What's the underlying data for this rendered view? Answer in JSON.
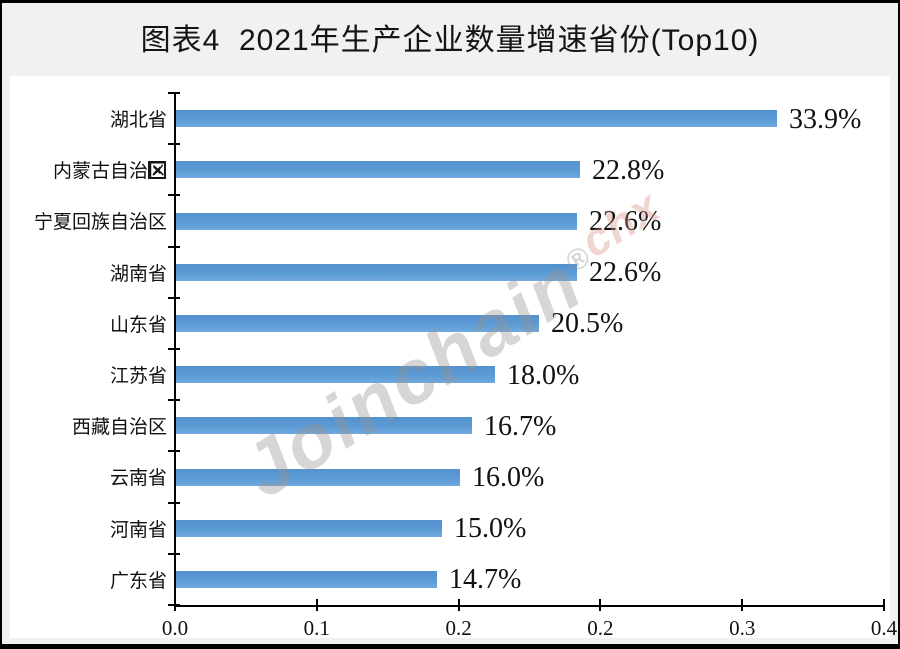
{
  "page": {
    "title": "图表4  2021年生产企业数量增速省份(Top10)"
  },
  "watermark": {
    "main": "Joinchain",
    "reg": "®",
    "tail": "chx",
    "main_color": "#989390",
    "tail_color": "#d6948a"
  },
  "icons": {
    "broken_image_glyph": "✕"
  },
  "chart_data": {
    "type": "bar",
    "orientation": "horizontal",
    "title": "图表4  2021年生产企业数量增速省份(Top10)",
    "categories": [
      "湖北省",
      "内蒙古自治区",
      "宁夏回族自治区",
      "湖南省",
      "山东省",
      "江苏省",
      "西藏自治区",
      "云南省",
      "河南省",
      "广东省"
    ],
    "values": [
      0.339,
      0.228,
      0.226,
      0.226,
      0.205,
      0.18,
      0.167,
      0.16,
      0.15,
      0.147
    ],
    "data_labels": [
      "33.9%",
      "22.8%",
      "22.6%",
      "22.6%",
      "20.5%",
      "18.0%",
      "16.7%",
      "16.0%",
      "15.0%",
      "14.7%"
    ],
    "xlim": [
      0,
      0.4
    ],
    "x_tick_values": [
      0,
      0.08,
      0.16,
      0.24,
      0.32,
      0.4
    ],
    "x_tick_labels": [
      "0.0",
      "0.1",
      "0.2",
      "0.2",
      "0.3",
      "0.4"
    ],
    "xlabel": "",
    "ylabel": "",
    "grid": false,
    "legend": null,
    "bar_color": "#5B9BD5",
    "axis_color": "#000000",
    "background_color": "#ffffff"
  }
}
